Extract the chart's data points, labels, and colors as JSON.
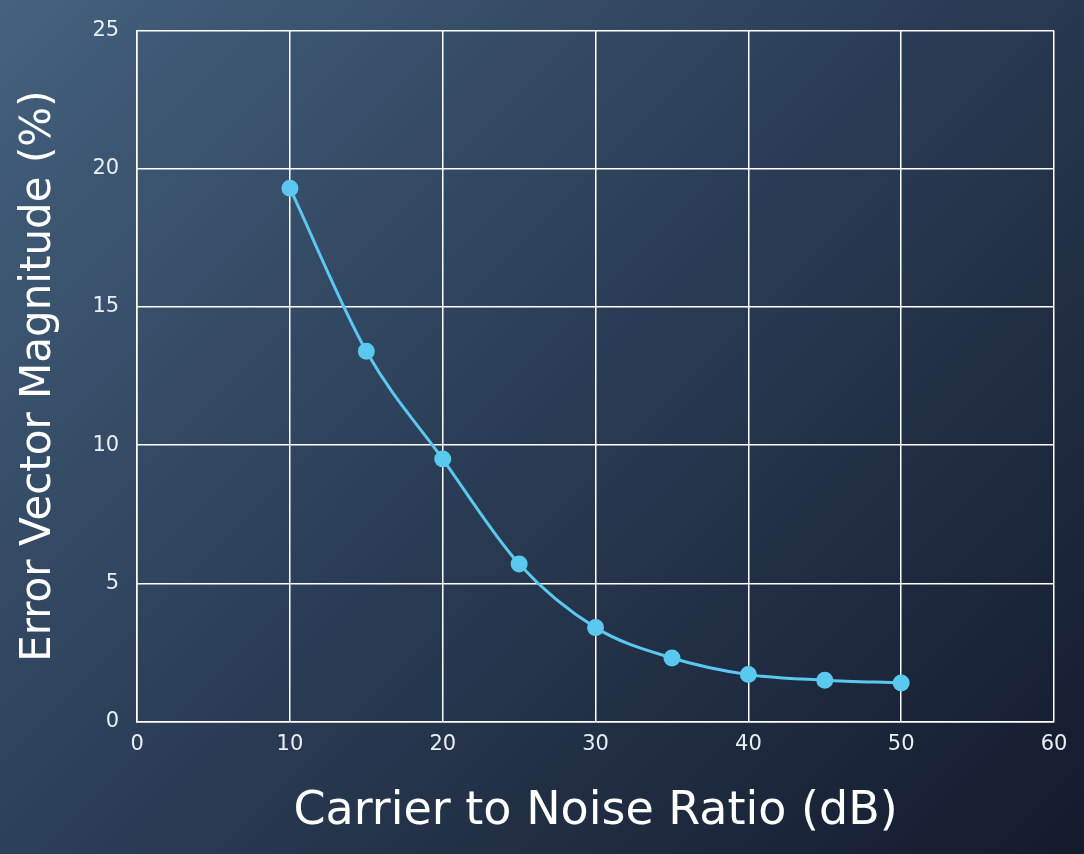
{
  "chart_data": {
    "type": "line",
    "xlabel": "Carrier to Noise Ratio (dB)",
    "ylabel": "Error Vector Magnitude (%)",
    "x": [
      10,
      15,
      20,
      25,
      30,
      35,
      40,
      45,
      50
    ],
    "series": [
      {
        "color": "#5bc8f0",
        "values": [
          19.3,
          13.4,
          9.5,
          5.7,
          3.4,
          2.3,
          1.7,
          1.5,
          1.4
        ]
      }
    ],
    "xlim": [
      0,
      60
    ],
    "xticks": [
      0,
      10,
      20,
      30,
      40,
      50,
      60
    ],
    "ylim": [
      0,
      25
    ],
    "yticks": [
      0,
      5,
      10,
      15,
      20,
      25
    ],
    "grid": true,
    "legend": false,
    "marker": "circle",
    "line_style": "solid"
  }
}
